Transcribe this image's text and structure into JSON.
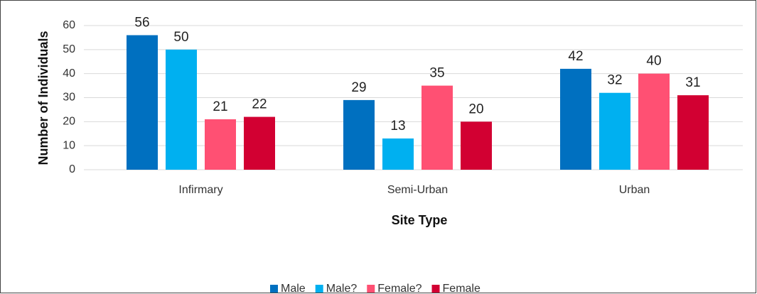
{
  "chart_data": {
    "type": "bar",
    "xlabel": "Site Type",
    "ylabel": "Number of Individuals",
    "categories": [
      "Infirmary",
      "Semi-Urban",
      "Urban"
    ],
    "series": [
      {
        "name": "Male",
        "color": "#0070c0",
        "values": [
          56,
          29,
          42
        ]
      },
      {
        "name": "Male?",
        "color": "#00b0f0",
        "values": [
          50,
          13,
          32
        ]
      },
      {
        "name": "Female?",
        "color": "#ff5073",
        "values": [
          21,
          35,
          40
        ]
      },
      {
        "name": "Female",
        "color": "#d20032",
        "values": [
          22,
          20,
          31
        ]
      }
    ],
    "ylim": [
      0,
      60
    ],
    "yticks": [
      0,
      10,
      20,
      30,
      40,
      50,
      60
    ],
    "grid": true,
    "legend": "bottom"
  }
}
